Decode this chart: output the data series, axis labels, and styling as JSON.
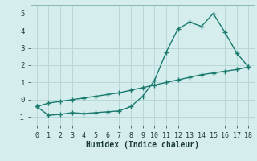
{
  "line1_x": [
    0,
    1,
    2,
    3,
    4,
    5,
    6,
    7,
    8,
    9,
    10,
    11,
    12,
    13,
    14,
    15,
    16,
    17,
    18
  ],
  "line1_y": [
    -0.4,
    -0.9,
    -0.85,
    -0.75,
    -0.8,
    -0.75,
    -0.7,
    -0.65,
    -0.4,
    0.2,
    1.1,
    2.75,
    4.1,
    4.5,
    4.25,
    5.0,
    3.9,
    2.7,
    1.9
  ],
  "line2_x": [
    0,
    1,
    2,
    3,
    4,
    5,
    6,
    7,
    8,
    9,
    10,
    11,
    12,
    13,
    14,
    15,
    16,
    17,
    18
  ],
  "line2_y": [
    -0.4,
    -0.2,
    -0.1,
    0.0,
    0.1,
    0.2,
    0.3,
    0.4,
    0.55,
    0.7,
    0.85,
    1.0,
    1.15,
    1.3,
    1.45,
    1.55,
    1.65,
    1.75,
    1.9
  ],
  "line_color": "#1a7a6e",
  "bg_color": "#d5eded",
  "grid_color": "#b8d8d8",
  "xlabel": "Humidex (Indice chaleur)",
  "xlim": [
    -0.5,
    18.5
  ],
  "ylim": [
    -1.5,
    5.5
  ],
  "yticks": [
    -1,
    0,
    1,
    2,
    3,
    4,
    5
  ],
  "xticks": [
    0,
    1,
    2,
    3,
    4,
    5,
    6,
    7,
    8,
    9,
    10,
    11,
    12,
    13,
    14,
    15,
    16,
    17,
    18
  ],
  "marker": "+",
  "markersize": 4,
  "linewidth": 1.0
}
